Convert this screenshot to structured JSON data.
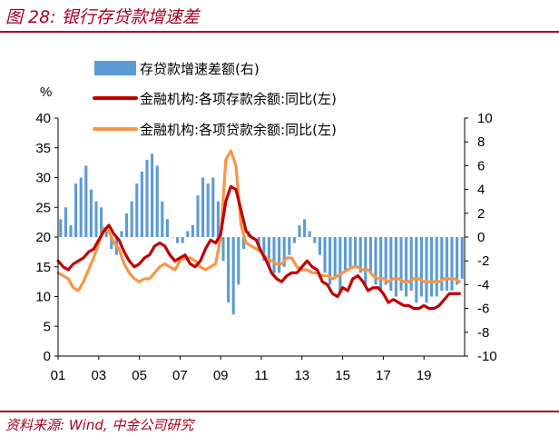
{
  "header": {
    "title": "图 28: 银行存贷款增速差"
  },
  "footer": {
    "source": "资料来源: Wind, 中金公司研究"
  },
  "colors": {
    "accent": "#a50021",
    "bars": "#5b9bd5",
    "deposit_line": "#c00000",
    "loan_line": "#f79646"
  },
  "chart_data": {
    "type": "bar+line",
    "ylabel_left": "%",
    "ylim_left": [
      0,
      40
    ],
    "yticks_left": [
      "0",
      "5",
      "10",
      "15",
      "20",
      "25",
      "30",
      "35",
      "40"
    ],
    "ylim_right": [
      -10,
      10
    ],
    "yticks_right": [
      "-10",
      "-8",
      "-6",
      "-4",
      "-2",
      "0",
      "2",
      "4",
      "6",
      "8",
      "10"
    ],
    "xlim": [
      2001,
      2021
    ],
    "xticks": [
      "01",
      "03",
      "05",
      "07",
      "09",
      "11",
      "13",
      "15",
      "17",
      "19"
    ],
    "legend": [
      {
        "label": "存贷款增速差额(右)",
        "kind": "bar"
      },
      {
        "label": "金融机构:各项存款余额:同比(左)",
        "kind": "line"
      },
      {
        "label": "金融机构:各项贷款余额:同比(左)",
        "kind": "line"
      }
    ],
    "series": [
      {
        "name": "存贷款增速差额(右)",
        "axis": "right",
        "kind": "bar",
        "x": [
          2001.0,
          2001.25,
          2001.5,
          2001.75,
          2002.0,
          2002.25,
          2002.5,
          2002.75,
          2003.0,
          2003.25,
          2003.5,
          2003.75,
          2004.0,
          2004.25,
          2004.5,
          2004.75,
          2005.0,
          2005.25,
          2005.5,
          2005.75,
          2006.0,
          2006.25,
          2006.5,
          2006.75,
          2007.0,
          2007.25,
          2007.5,
          2007.75,
          2008.0,
          2008.25,
          2008.5,
          2008.75,
          2009.0,
          2009.25,
          2009.5,
          2009.75,
          2010.0,
          2010.25,
          2010.5,
          2010.75,
          2011.0,
          2011.25,
          2011.5,
          2011.75,
          2012.0,
          2012.25,
          2012.5,
          2012.75,
          2013.0,
          2013.25,
          2013.5,
          2013.75,
          2014.0,
          2014.25,
          2014.5,
          2014.75,
          2015.0,
          2015.25,
          2015.5,
          2015.75,
          2016.0,
          2016.25,
          2016.5,
          2016.75,
          2017.0,
          2017.25,
          2017.5,
          2017.75,
          2018.0,
          2018.25,
          2018.5,
          2018.75,
          2019.0,
          2019.25,
          2019.5,
          2019.75,
          2020.0,
          2020.25,
          2020.5,
          2020.75
        ],
        "values": [
          1.5,
          2.5,
          1.0,
          4.5,
          5.0,
          6.0,
          4.0,
          3.0,
          2.5,
          0.5,
          -1.0,
          -1.5,
          0.5,
          2.0,
          3.0,
          4.5,
          5.5,
          6.5,
          7.0,
          6.0,
          3.0,
          1.5,
          0.0,
          -0.5,
          -0.5,
          0.5,
          1.0,
          3.5,
          5.0,
          4.5,
          5.0,
          3.0,
          -2.0,
          -5.5,
          -6.5,
          -4.0,
          -1.0,
          0.5,
          0.0,
          -1.0,
          -2.0,
          -2.5,
          -3.0,
          -3.0,
          -2.5,
          -1.5,
          -0.5,
          1.0,
          1.5,
          0.5,
          -0.5,
          -1.5,
          -3.0,
          -4.0,
          -3.5,
          -4.5,
          -3.0,
          -2.5,
          -2.5,
          -3.0,
          -4.0,
          -3.0,
          -4.0,
          -4.5,
          -4.0,
          -4.5,
          -5.0,
          -4.5,
          -5.0,
          -4.5,
          -5.5,
          -5.0,
          -5.5,
          -5.0,
          -5.0,
          -4.5,
          -4.5,
          -4.5,
          -4.0,
          -3.5
        ]
      },
      {
        "name": "金融机构:各项存款余额:同比(左)",
        "axis": "left",
        "kind": "line",
        "x": [
          2001.0,
          2001.25,
          2001.5,
          2001.75,
          2002.0,
          2002.25,
          2002.5,
          2002.75,
          2003.0,
          2003.25,
          2003.5,
          2003.75,
          2004.0,
          2004.25,
          2004.5,
          2004.75,
          2005.0,
          2005.25,
          2005.5,
          2005.75,
          2006.0,
          2006.25,
          2006.5,
          2006.75,
          2007.0,
          2007.25,
          2007.5,
          2007.75,
          2008.0,
          2008.25,
          2008.5,
          2008.75,
          2009.0,
          2009.25,
          2009.5,
          2009.75,
          2010.0,
          2010.25,
          2010.5,
          2010.75,
          2011.0,
          2011.25,
          2011.5,
          2011.75,
          2012.0,
          2012.25,
          2012.5,
          2012.75,
          2013.0,
          2013.25,
          2013.5,
          2013.75,
          2014.0,
          2014.25,
          2014.5,
          2014.75,
          2015.0,
          2015.25,
          2015.5,
          2015.75,
          2016.0,
          2016.25,
          2016.5,
          2016.75,
          2017.0,
          2017.25,
          2017.5,
          2017.75,
          2018.0,
          2018.25,
          2018.5,
          2018.75,
          2019.0,
          2019.25,
          2019.5,
          2019.75,
          2020.0,
          2020.25,
          2020.5,
          2020.75
        ],
        "values": [
          16.0,
          15.0,
          14.5,
          15.5,
          16.0,
          16.5,
          17.5,
          18.0,
          19.5,
          21.0,
          22.0,
          20.5,
          19.5,
          17.5,
          16.0,
          15.0,
          15.5,
          16.5,
          17.0,
          18.5,
          19.0,
          18.5,
          17.0,
          16.0,
          16.5,
          17.0,
          15.5,
          15.0,
          16.0,
          18.0,
          19.5,
          19.0,
          20.5,
          26.0,
          28.5,
          28.0,
          24.5,
          21.0,
          20.0,
          19.5,
          17.5,
          16.0,
          14.0,
          13.0,
          12.5,
          13.5,
          14.0,
          14.0,
          15.0,
          16.0,
          15.0,
          14.5,
          12.5,
          12.0,
          10.5,
          10.0,
          11.5,
          11.0,
          13.0,
          13.5,
          12.5,
          11.0,
          11.5,
          11.5,
          10.5,
          9.0,
          9.5,
          9.0,
          8.5,
          8.5,
          8.0,
          8.0,
          8.5,
          8.0,
          8.0,
          8.5,
          9.5,
          10.5,
          10.5,
          10.5
        ]
      },
      {
        "name": "金融机构:各项贷款余额:同比(左)",
        "axis": "left",
        "kind": "line",
        "x": [
          2001.0,
          2001.25,
          2001.5,
          2001.75,
          2002.0,
          2002.25,
          2002.5,
          2002.75,
          2003.0,
          2003.25,
          2003.5,
          2003.75,
          2004.0,
          2004.25,
          2004.5,
          2004.75,
          2005.0,
          2005.25,
          2005.5,
          2005.75,
          2006.0,
          2006.25,
          2006.5,
          2006.75,
          2007.0,
          2007.25,
          2007.5,
          2007.75,
          2008.0,
          2008.25,
          2008.5,
          2008.75,
          2009.0,
          2009.25,
          2009.5,
          2009.75,
          2010.0,
          2010.25,
          2010.5,
          2010.75,
          2011.0,
          2011.25,
          2011.5,
          2011.75,
          2012.0,
          2012.25,
          2012.5,
          2012.75,
          2013.0,
          2013.25,
          2013.5,
          2013.75,
          2014.0,
          2014.25,
          2014.5,
          2014.75,
          2015.0,
          2015.25,
          2015.5,
          2015.75,
          2016.0,
          2016.25,
          2016.5,
          2016.75,
          2017.0,
          2017.25,
          2017.5,
          2017.75,
          2018.0,
          2018.25,
          2018.5,
          2018.75,
          2019.0,
          2019.25,
          2019.5,
          2019.75,
          2020.0,
          2020.25,
          2020.5,
          2020.75
        ],
        "values": [
          14.0,
          13.5,
          13.0,
          11.5,
          11.0,
          12.5,
          14.5,
          16.5,
          19.0,
          21.5,
          21.0,
          19.0,
          18.0,
          15.5,
          14.0,
          13.0,
          12.5,
          13.0,
          13.0,
          14.0,
          15.0,
          15.5,
          15.0,
          14.5,
          16.0,
          16.5,
          16.5,
          16.0,
          15.0,
          14.5,
          15.0,
          15.5,
          20.0,
          33.0,
          34.5,
          32.0,
          22.0,
          19.0,
          18.5,
          18.0,
          17.5,
          16.5,
          16.0,
          15.5,
          15.5,
          16.5,
          16.5,
          15.0,
          14.5,
          14.5,
          14.0,
          14.0,
          13.5,
          13.5,
          13.0,
          13.5,
          14.0,
          14.5,
          15.0,
          15.0,
          14.5,
          14.5,
          13.5,
          13.0,
          13.0,
          12.5,
          13.0,
          13.0,
          12.5,
          12.5,
          13.0,
          13.0,
          12.5,
          12.5,
          12.5,
          12.5,
          13.0,
          13.0,
          13.0,
          12.5
        ]
      }
    ]
  }
}
